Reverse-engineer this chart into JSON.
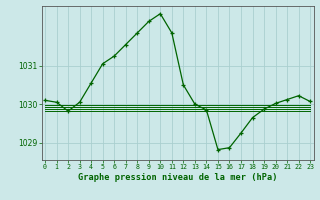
{
  "title": "Graphe pression niveau de la mer (hPa)",
  "bg_color": "#cce8e8",
  "line_color": "#006400",
  "grid_color": "#aacfcf",
  "tick_label_color": "#006400",
  "hours": [
    0,
    1,
    2,
    3,
    4,
    5,
    6,
    7,
    8,
    9,
    10,
    11,
    12,
    13,
    14,
    15,
    16,
    17,
    18,
    19,
    20,
    21,
    22,
    23
  ],
  "pressure_main": [
    1030.1,
    1030.05,
    1029.82,
    1030.05,
    1030.55,
    1031.05,
    1031.25,
    1031.55,
    1031.85,
    1032.15,
    1032.35,
    1031.85,
    1030.5,
    1030.0,
    1029.85,
    1028.82,
    1028.87,
    1029.25,
    1029.65,
    1029.87,
    1030.02,
    1030.12,
    1030.22,
    1030.07
  ],
  "pressure_flat1": [
    1029.82,
    1029.82,
    1029.82,
    1029.82,
    1029.82,
    1029.82,
    1029.82,
    1029.82,
    1029.82,
    1029.82,
    1029.82,
    1029.82,
    1029.82,
    1029.82,
    1029.82,
    1029.82,
    1029.82,
    1029.82,
    1029.82,
    1029.82,
    1029.82,
    1029.82,
    1029.82,
    1029.82
  ],
  "pressure_flat2": [
    1029.87,
    1029.87,
    1029.87,
    1029.87,
    1029.87,
    1029.87,
    1029.87,
    1029.87,
    1029.87,
    1029.87,
    1029.87,
    1029.87,
    1029.87,
    1029.87,
    1029.87,
    1029.87,
    1029.87,
    1029.87,
    1029.87,
    1029.87,
    1029.87,
    1029.87,
    1029.87,
    1029.87
  ],
  "pressure_flat3": [
    1029.92,
    1029.92,
    1029.92,
    1029.92,
    1029.92,
    1029.92,
    1029.92,
    1029.92,
    1029.92,
    1029.92,
    1029.92,
    1029.92,
    1029.92,
    1029.92,
    1029.92,
    1029.92,
    1029.92,
    1029.92,
    1029.92,
    1029.92,
    1029.92,
    1029.92,
    1029.92,
    1029.92
  ],
  "pressure_flat4": [
    1029.97,
    1029.97,
    1029.97,
    1029.97,
    1029.97,
    1029.97,
    1029.97,
    1029.97,
    1029.97,
    1029.97,
    1029.97,
    1029.97,
    1029.97,
    1029.97,
    1029.97,
    1029.97,
    1029.97,
    1029.97,
    1029.97,
    1029.97,
    1029.97,
    1029.97,
    1029.97,
    1029.97
  ],
  "ylim": [
    1028.55,
    1032.55
  ],
  "yticks": [
    1029,
    1030,
    1031
  ],
  "xlim": [
    -0.3,
    23.3
  ],
  "xticks": [
    0,
    1,
    2,
    3,
    4,
    5,
    6,
    7,
    8,
    9,
    10,
    11,
    12,
    13,
    14,
    15,
    16,
    17,
    18,
    19,
    20,
    21,
    22,
    23
  ]
}
